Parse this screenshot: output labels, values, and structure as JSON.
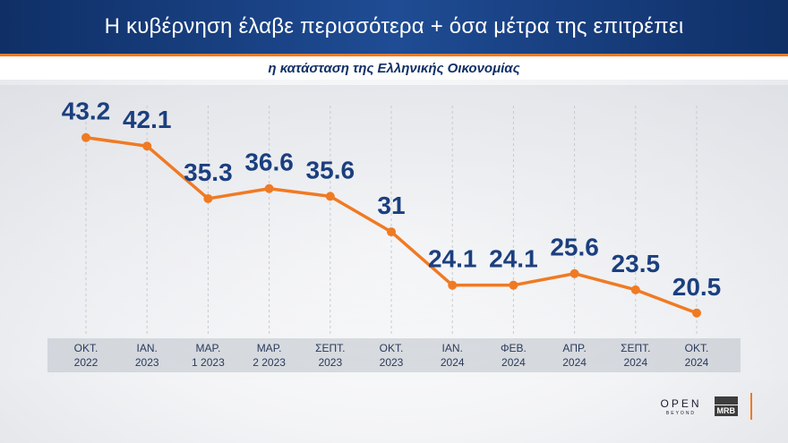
{
  "header": {
    "title": "Η κυβέρνηση έλαβε περισσότερα + όσα μέτρα της επιτρέπει",
    "subtitle": "η κατάσταση της Ελληνικής Οικονομίας"
  },
  "logos": {
    "open_text": "OPEN",
    "open_sub": "BEYOND",
    "mrb_text": "MRB"
  },
  "colors": {
    "line": "#f07a23",
    "labels": "#1b3f7f",
    "title_bg": "#1f4c94",
    "accent": "#f07a23"
  },
  "chart_data": {
    "type": "line",
    "title": "",
    "xlabel": "",
    "ylabel": "",
    "grid": "vertical-dashed",
    "categories": [
      [
        "ΟΚΤ.",
        "2022"
      ],
      [
        "ΙΑΝ.",
        "2023"
      ],
      [
        "ΜΑΡ.",
        "1 2023"
      ],
      [
        "ΜΑΡ.",
        "2 2023"
      ],
      [
        "ΣΕΠΤ.",
        "2023"
      ],
      [
        "ΟΚΤ.",
        "2023"
      ],
      [
        "ΙΑΝ.",
        "2024"
      ],
      [
        "ΦΕΒ.",
        "2024"
      ],
      [
        "ΑΠΡ.",
        "2024"
      ],
      [
        "ΣΕΠΤ.",
        "2024"
      ],
      [
        "ΟΚΤ.",
        "2024"
      ]
    ],
    "series": [
      {
        "values": [
          43.2,
          42.1,
          35.3,
          36.6,
          35.6,
          31,
          24.1,
          24.1,
          25.6,
          23.5,
          20.5
        ],
        "labels": [
          "43.2",
          "42.1",
          "35.3",
          "36.6",
          "35.6",
          "31",
          "24.1",
          "24.1",
          "25.6",
          "23.5",
          "20.5"
        ]
      }
    ],
    "ylim": [
      17,
      50
    ]
  }
}
